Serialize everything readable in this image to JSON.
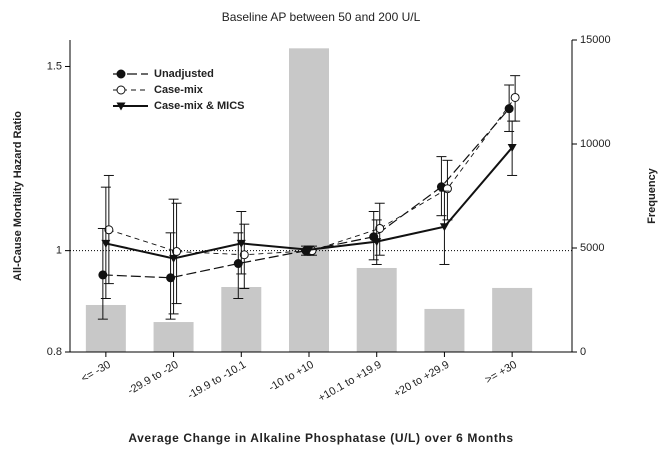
{
  "chart_data": {
    "type": "bar-line",
    "title": "Baseline AP between 50 and 200 U/L",
    "x_label": "Average Change in Alkaline Phosphatase (U/L) over 6 Months",
    "y_label": "All-Cause Mortality Hazard Ratio",
    "y2_label": "Frequency",
    "categories": [
      "<= -30",
      "-29.9 to -20",
      "-19.9 to -10.1",
      "-10 to +10",
      "+10.1 to +19.9",
      "+20 to +29.9",
      ">= +30"
    ],
    "ylim": [
      0.8,
      1.59
    ],
    "yticks": [
      0.8,
      1,
      1.5
    ],
    "y_log": true,
    "y2lim": [
      0,
      15000
    ],
    "y2ticks": [
      0,
      5000,
      10000,
      15000
    ],
    "reference_line": 1,
    "legend_position": "upper left",
    "bars": {
      "name": "Frequency",
      "color": "#c8c8c8",
      "axis": "y2",
      "values": [
        2260,
        1440,
        3125,
        14600,
        4040,
        2070,
        3080
      ]
    },
    "series": [
      {
        "name": "Unadjusted",
        "color": "#111111",
        "marker": "filled-circle",
        "dash": "long",
        "values": [
          0.948,
          0.942,
          0.972,
          1.0,
          1.031,
          1.151,
          1.367
        ],
        "lower": [
          0.86,
          0.86,
          0.9,
          0.99,
          0.98,
          1.08,
          1.3
        ],
        "upper": [
          1.05,
          1.04,
          1.04,
          1.01,
          1.09,
          1.23,
          1.44
        ]
      },
      {
        "name": "Case-mix",
        "color": "#111111",
        "marker": "open-circle",
        "dash": "short",
        "values": [
          1.047,
          0.998,
          0.991,
          1.0,
          1.05,
          1.146,
          1.401
        ],
        "lower": [
          0.93,
          0.89,
          0.92,
          0.99,
          0.99,
          1.07,
          1.33
        ],
        "upper": [
          1.18,
          1.11,
          1.06,
          1.01,
          1.11,
          1.22,
          1.47
        ]
      },
      {
        "name": "Case-mix & MICS",
        "color": "#111111",
        "marker": "triangle-down",
        "dash": "solid",
        "values": [
          1.016,
          0.983,
          1.016,
          1.002,
          1.02,
          1.054,
          1.255
        ],
        "lower": [
          0.9,
          0.87,
          0.95,
          0.99,
          0.97,
          0.97,
          1.18
        ],
        "upper": [
          1.15,
          1.12,
          1.09,
          1.01,
          1.07,
          1.14,
          1.33
        ]
      }
    ]
  }
}
